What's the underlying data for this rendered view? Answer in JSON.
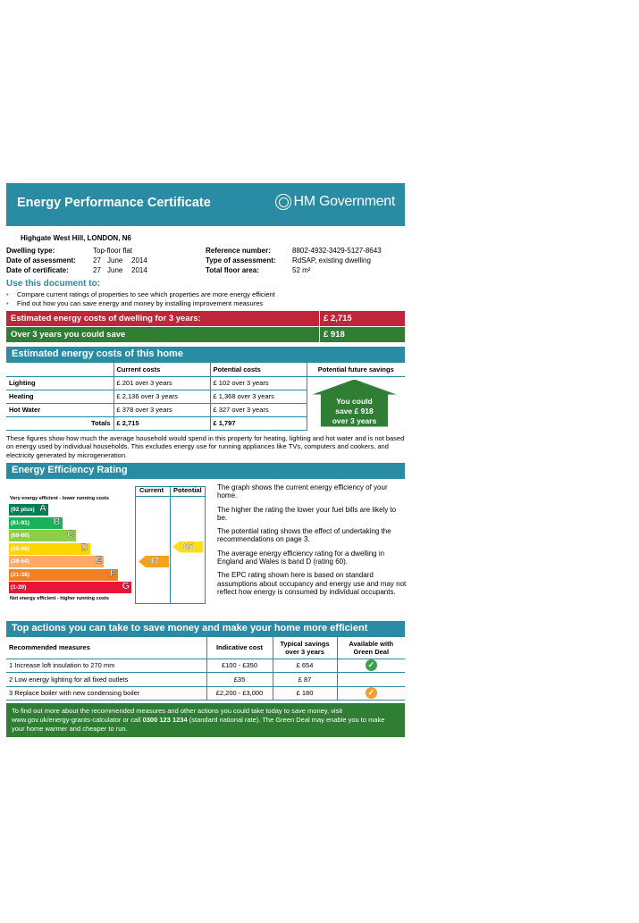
{
  "header": {
    "title": "Energy Performance Certificate",
    "gov": "HM Government"
  },
  "property": {
    "address": "Highgate West Hill, LONDON, N6",
    "dwelling_type_label": "Dwelling type:",
    "dwelling_type": "Top-floor flat",
    "assessment_label": "Date of assessment:",
    "assessment_day": "27",
    "assessment_month": "June",
    "assessment_year": "2014",
    "certificate_label": "Date of certificate:",
    "certificate_day": "27",
    "certificate_month": "June",
    "certificate_year": "2014",
    "reference_label": "Reference number:",
    "reference": "8802-4932-3429-5127-8643",
    "assessment_type_label": "Type of assessment:",
    "assessment_type": "RdSAP, existing dwelling",
    "floor_area_label": "Total floor area:",
    "floor_area": "52 m²"
  },
  "use": {
    "title": "Use this document to:",
    "bullets": [
      "Compare current ratings of properties to see which properties are more energy efficient",
      "Find out how you can save energy and money by installing improvement measures"
    ]
  },
  "summary": {
    "estimated_label": "Estimated energy costs of dwelling for 3 years:",
    "estimated_value": "£ 2,715",
    "save_label": "Over 3 years you could save",
    "save_value": "£ 918"
  },
  "costs": {
    "title": "Estimated energy costs of this home",
    "headers": [
      "Current costs",
      "Potential costs",
      "Potential future savings"
    ],
    "rows": [
      {
        "label": "Lighting",
        "current": "£ 201 over 3 years",
        "potential": "£ 102 over 3 years"
      },
      {
        "label": "Heating",
        "current": "£ 2,136 over 3 years",
        "potential": "£ 1,368 over 3 years"
      },
      {
        "label": "Hot Water",
        "current": "£ 378 over 3 years",
        "potential": "£ 327 over 3 years"
      }
    ],
    "totals_label": "Totals",
    "total_current": "£ 2,715",
    "total_potential": "£ 1,797",
    "savings_line1": "You could",
    "savings_line2": "save £ 918",
    "savings_line3": "over 3 years",
    "note": "These figures show how much the average household would spend in this property for heating, lighting and hot water and is not based on energy used by individual households. This excludes energy use for running appliances like TVs, computers and cookers, and electricity generated by microgeneration."
  },
  "rating": {
    "title": "Energy Efficiency Rating",
    "current_header": "Current",
    "potential_header": "Potential",
    "top_note": "Very energy efficient - lower running costs",
    "bottom_note": "Not energy efficient - higher running costs",
    "bands": [
      {
        "range": "(92 plus)",
        "letter": "A",
        "color": "#008054"
      },
      {
        "range": "(81-91)",
        "letter": "B",
        "color": "#19b459"
      },
      {
        "range": "(69-80)",
        "letter": "C",
        "color": "#8dce46"
      },
      {
        "range": "(55-68)",
        "letter": "D",
        "color": "#ffd500"
      },
      {
        "range": "(39-54)",
        "letter": "E",
        "color": "#fcaa65"
      },
      {
        "range": "(21-38)",
        "letter": "F",
        "color": "#ef8023"
      },
      {
        "range": "(1-20)",
        "letter": "G",
        "color": "#e9153b"
      }
    ],
    "current": "47",
    "potential": "65",
    "text": [
      "The graph shows the current energy efficiency of your home.",
      "The higher the rating the lower your fuel bills are likely to be.",
      "The potential rating shows the effect of undertaking the recommendations on page 3.",
      "The average energy efficiency rating for a dwelling in England and Wales is band D (rating 60).",
      "The EPC rating shown here is based on standard assumptions about occupancy and energy use and may not reflect how energy is consumed by individual occupants."
    ]
  },
  "actions": {
    "title": "Top actions you can take to save money and make your home more efficient",
    "headers": [
      "Recommended measures",
      "Indicative cost",
      "Typical savings over 3 years",
      "Available with Green Deal"
    ],
    "rows": [
      {
        "measure": "1  Increase loft insulation to 270 mm",
        "cost": "£100 - £350",
        "saving": "£ 654",
        "tick_color": "#3aa04a"
      },
      {
        "measure": "2  Low energy lighting for all fixed outlets",
        "cost": "£35",
        "saving": "£ 87",
        "tick_color": ""
      },
      {
        "measure": "3  Replace boiler with new condensing boiler",
        "cost": "£2,200 - £3,000",
        "saving": "£ 180",
        "tick_color": "#f0a030"
      }
    ]
  },
  "footer": {
    "text1": "To find out more about the recommended measures and other actions you could take today to save money, visit www.gov.uk/energy-grants-calculator or call ",
    "phone": "0300 123 1234",
    "text2": " (standard national rate). The Green Deal may enable you to make your home warmer and cheaper to run."
  },
  "colors": {
    "teal": "#2a8ba5",
    "red": "#c0253a",
    "green": "#2f7e34"
  }
}
